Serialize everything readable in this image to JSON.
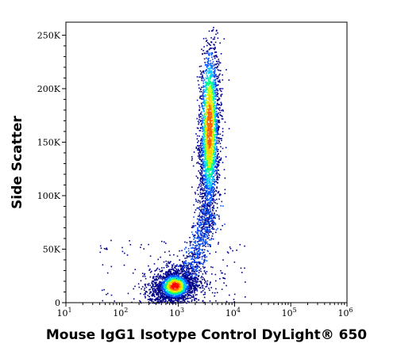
{
  "chart_data": {
    "type": "scatter",
    "style": "density-heatmap",
    "xlabel": "Mouse IgG1 Isotype Control DyLight® 650",
    "ylabel": "Side Scatter",
    "x_scale": "log",
    "xlim": [
      10,
      1000000
    ],
    "ylim": [
      0,
      262144
    ],
    "x_ticks": [
      {
        "value": 10,
        "base": "10",
        "exp": "1"
      },
      {
        "value": 100,
        "base": "10",
        "exp": "2"
      },
      {
        "value": 1000,
        "base": "10",
        "exp": "3"
      },
      {
        "value": 10000,
        "base": "10",
        "exp": "4"
      },
      {
        "value": 100000,
        "base": "10",
        "exp": "5"
      },
      {
        "value": 1000000,
        "base": "10",
        "exp": "6"
      }
    ],
    "y_ticks": [
      {
        "value": 0,
        "label": "0"
      },
      {
        "value": 50000,
        "label": "50K"
      },
      {
        "value": 100000,
        "label": "100K"
      },
      {
        "value": 150000,
        "label": "150K"
      },
      {
        "value": 200000,
        "label": "200K"
      },
      {
        "value": 250000,
        "label": "250K"
      }
    ],
    "series": [
      {
        "center_x": 3500,
        "center_y": 155000,
        "spread_log_x": 0.09,
        "spread_y": 55000,
        "peak_y": 165000,
        "points": 2600
      },
      {
        "center_x": 850,
        "center_y": 16000,
        "spread_log_x": 0.22,
        "spread_y": 9000,
        "points": 1800
      }
    ],
    "color_scale": [
      "#00008b",
      "#0050ff",
      "#00c8ff",
      "#00ff80",
      "#c8ff00",
      "#ffd000",
      "#ff6000",
      "#ff0000"
    ],
    "grid": false
  }
}
